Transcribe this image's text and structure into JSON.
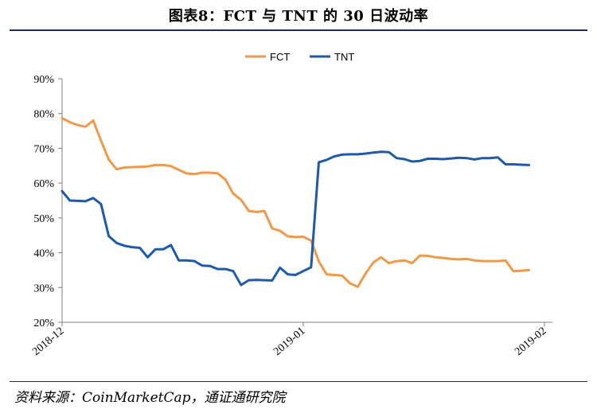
{
  "title": "图表8：FCT 与 TNT 的 30 日波动率",
  "source": "资料来源：CoinMarketCap，通证通研究院",
  "chart_data": {
    "type": "line",
    "ylim": [
      0.2,
      0.9
    ],
    "yticks": [
      {
        "value": 0.2,
        "label": "20%"
      },
      {
        "value": 0.3,
        "label": "30%"
      },
      {
        "value": 0.4,
        "label": "40%"
      },
      {
        "value": 0.5,
        "label": "50%"
      },
      {
        "value": 0.6,
        "label": "60%"
      },
      {
        "value": 0.7,
        "label": "70%"
      },
      {
        "value": 0.8,
        "label": "80%"
      },
      {
        "value": 0.9,
        "label": "90%"
      }
    ],
    "xlim": [
      "2018-12-01",
      "2019-02-01"
    ],
    "xticks": [
      {
        "value": "2018-12-01",
        "label": "2018-12"
      },
      {
        "value": "2019-01-01",
        "label": "2019-01"
      },
      {
        "value": "2019-02-01",
        "label": "2019-02"
      }
    ],
    "legend_position": "top-center",
    "grid": false,
    "series": [
      {
        "name": "FCT",
        "color": "#ee9a4a",
        "points": [
          [
            "2018-12-01",
            0.787
          ],
          [
            "2018-12-02",
            0.775
          ],
          [
            "2018-12-03",
            0.767
          ],
          [
            "2018-12-04",
            0.762
          ],
          [
            "2018-12-05",
            0.78
          ],
          [
            "2018-12-06",
            0.722
          ],
          [
            "2018-12-07",
            0.668
          ],
          [
            "2018-12-08",
            0.64
          ],
          [
            "2018-12-09",
            0.645
          ],
          [
            "2018-12-10",
            0.646
          ],
          [
            "2018-12-11",
            0.647
          ],
          [
            "2018-12-12",
            0.648
          ],
          [
            "2018-12-13",
            0.652
          ],
          [
            "2018-12-14",
            0.652
          ],
          [
            "2018-12-15",
            0.649
          ],
          [
            "2018-12-16",
            0.638
          ],
          [
            "2018-12-17",
            0.628
          ],
          [
            "2018-12-18",
            0.626
          ],
          [
            "2018-12-19",
            0.63
          ],
          [
            "2018-12-20",
            0.63
          ],
          [
            "2018-12-21",
            0.628
          ],
          [
            "2018-12-22",
            0.61
          ],
          [
            "2018-12-23",
            0.57
          ],
          [
            "2018-12-24",
            0.552
          ],
          [
            "2018-12-25",
            0.52
          ],
          [
            "2018-12-26",
            0.517
          ],
          [
            "2018-12-27",
            0.52
          ],
          [
            "2018-12-28",
            0.47
          ],
          [
            "2018-12-29",
            0.463
          ],
          [
            "2018-12-30",
            0.447
          ],
          [
            "2018-12-31",
            0.445
          ],
          [
            "2019-01-01",
            0.446
          ],
          [
            "2019-01-02",
            0.435
          ],
          [
            "2019-01-03",
            0.375
          ],
          [
            "2019-01-04",
            0.338
          ],
          [
            "2019-01-05",
            0.336
          ],
          [
            "2019-01-06",
            0.334
          ],
          [
            "2019-01-07",
            0.312
          ],
          [
            "2019-01-08",
            0.302
          ],
          [
            "2019-01-09",
            0.34
          ],
          [
            "2019-01-10",
            0.372
          ],
          [
            "2019-01-11",
            0.387
          ],
          [
            "2019-01-12",
            0.37
          ],
          [
            "2019-01-13",
            0.376
          ],
          [
            "2019-01-14",
            0.378
          ],
          [
            "2019-01-15",
            0.37
          ],
          [
            "2019-01-16",
            0.392
          ],
          [
            "2019-01-17",
            0.391
          ],
          [
            "2019-01-18",
            0.387
          ],
          [
            "2019-01-19",
            0.385
          ],
          [
            "2019-01-20",
            0.382
          ],
          [
            "2019-01-21",
            0.381
          ],
          [
            "2019-01-22",
            0.382
          ],
          [
            "2019-01-23",
            0.378
          ],
          [
            "2019-01-24",
            0.376
          ],
          [
            "2019-01-25",
            0.376
          ],
          [
            "2019-01-26",
            0.376
          ],
          [
            "2019-01-27",
            0.378
          ],
          [
            "2019-01-28",
            0.347
          ],
          [
            "2019-01-29",
            0.348
          ],
          [
            "2019-01-30",
            0.35
          ]
        ]
      },
      {
        "name": "TNT",
        "color": "#1f5aa6",
        "points": [
          [
            "2018-12-01",
            0.577
          ],
          [
            "2018-12-02",
            0.55
          ],
          [
            "2018-12-03",
            0.549
          ],
          [
            "2018-12-04",
            0.548
          ],
          [
            "2018-12-05",
            0.557
          ],
          [
            "2018-12-06",
            0.54
          ],
          [
            "2018-12-07",
            0.448
          ],
          [
            "2018-12-08",
            0.428
          ],
          [
            "2018-12-09",
            0.42
          ],
          [
            "2018-12-10",
            0.416
          ],
          [
            "2018-12-11",
            0.414
          ],
          [
            "2018-12-12",
            0.387
          ],
          [
            "2018-12-13",
            0.41
          ],
          [
            "2018-12-14",
            0.41
          ],
          [
            "2018-12-15",
            0.422
          ],
          [
            "2018-12-16",
            0.378
          ],
          [
            "2018-12-17",
            0.378
          ],
          [
            "2018-12-18",
            0.376
          ],
          [
            "2018-12-19",
            0.363
          ],
          [
            "2018-12-20",
            0.362
          ],
          [
            "2018-12-21",
            0.353
          ],
          [
            "2018-12-22",
            0.353
          ],
          [
            "2018-12-23",
            0.347
          ],
          [
            "2018-12-24",
            0.307
          ],
          [
            "2018-12-25",
            0.321
          ],
          [
            "2018-12-26",
            0.322
          ],
          [
            "2018-12-27",
            0.321
          ],
          [
            "2018-12-28",
            0.32
          ],
          [
            "2018-12-29",
            0.357
          ],
          [
            "2018-12-30",
            0.338
          ],
          [
            "2018-12-31",
            0.336
          ],
          [
            "2019-01-01",
            0.347
          ],
          [
            "2019-01-02",
            0.358
          ],
          [
            "2019-01-03",
            0.66
          ],
          [
            "2019-01-04",
            0.667
          ],
          [
            "2019-01-05",
            0.677
          ],
          [
            "2019-01-06",
            0.682
          ],
          [
            "2019-01-07",
            0.683
          ],
          [
            "2019-01-08",
            0.683
          ],
          [
            "2019-01-09",
            0.685
          ],
          [
            "2019-01-10",
            0.688
          ],
          [
            "2019-01-11",
            0.69
          ],
          [
            "2019-01-12",
            0.689
          ],
          [
            "2019-01-13",
            0.672
          ],
          [
            "2019-01-14",
            0.669
          ],
          [
            "2019-01-15",
            0.662
          ],
          [
            "2019-01-16",
            0.664
          ],
          [
            "2019-01-17",
            0.67
          ],
          [
            "2019-01-18",
            0.67
          ],
          [
            "2019-01-19",
            0.669
          ],
          [
            "2019-01-20",
            0.671
          ],
          [
            "2019-01-21",
            0.673
          ],
          [
            "2019-01-22",
            0.672
          ],
          [
            "2019-01-23",
            0.668
          ],
          [
            "2019-01-24",
            0.672
          ],
          [
            "2019-01-25",
            0.672
          ],
          [
            "2019-01-26",
            0.674
          ],
          [
            "2019-01-27",
            0.654
          ],
          [
            "2019-01-28",
            0.654
          ],
          [
            "2019-01-29",
            0.653
          ],
          [
            "2019-01-30",
            0.652
          ]
        ]
      }
    ]
  }
}
